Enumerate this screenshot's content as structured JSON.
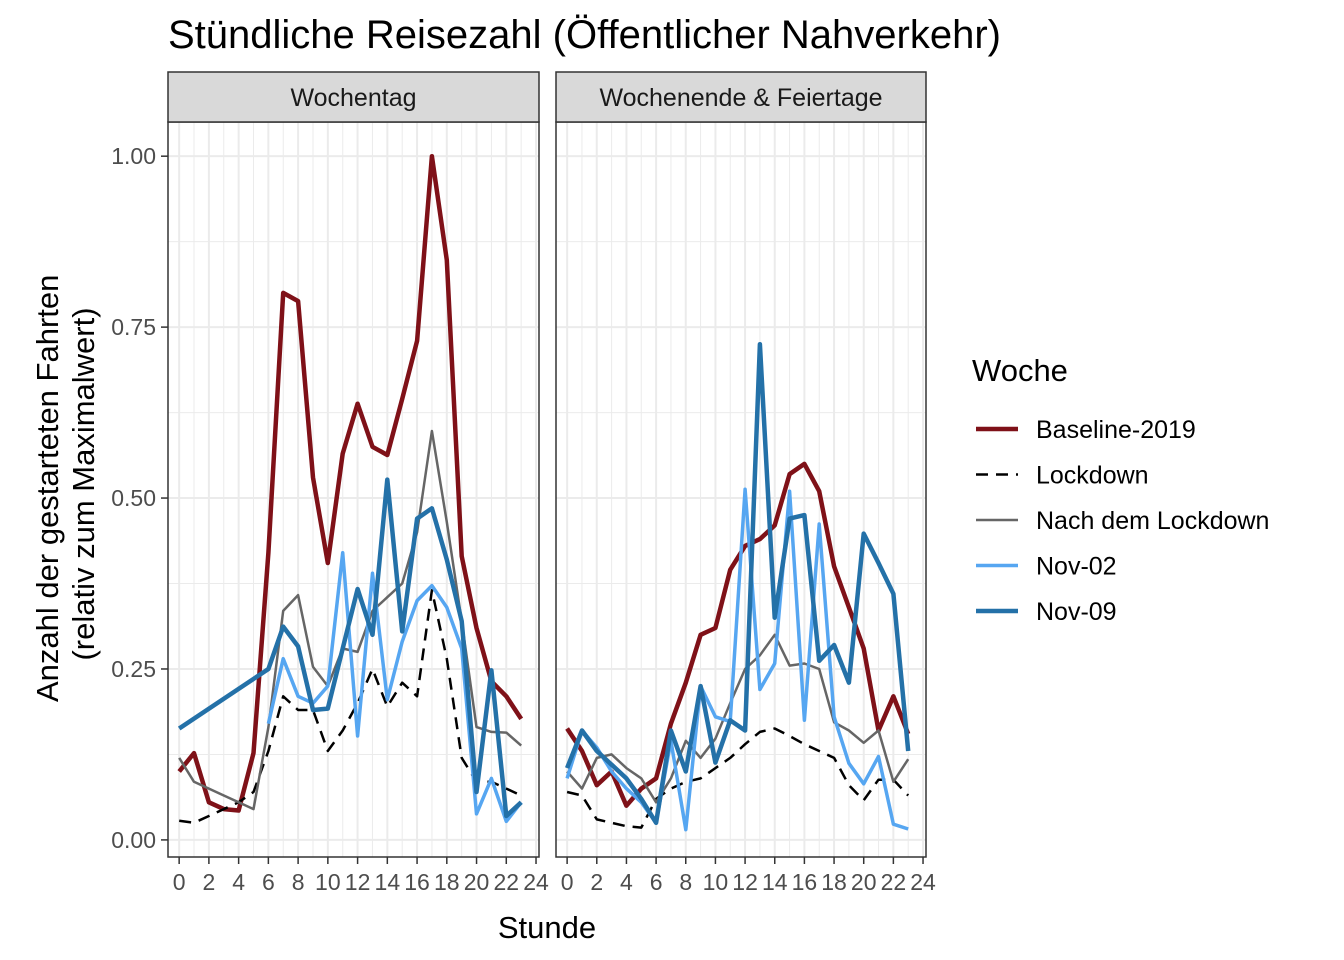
{
  "chart_data": {
    "type": "line",
    "title": "Stündliche Reisezahl (Öffentlicher Nahverkehr)",
    "xlabel": "Stunde",
    "ylabel": [
      "Anzahl der gestarteten Fahrten",
      "(relativ zum Maximalwert)"
    ],
    "xlim": [
      -0.75,
      24.2
    ],
    "ylim": [
      -0.025,
      1.05
    ],
    "x_ticks": [
      0,
      2,
      4,
      6,
      8,
      10,
      12,
      14,
      16,
      18,
      20,
      22,
      24
    ],
    "y_ticks": [
      0.0,
      0.25,
      0.5,
      0.75,
      1.0
    ],
    "y_tick_labels": [
      "0.00",
      "0.25",
      "0.50",
      "0.75",
      "1.00"
    ],
    "grid": true,
    "facets": [
      "Wochentag",
      "Wochenende & Feiertage"
    ],
    "legend": {
      "title": "Woche",
      "position": "right",
      "entries": [
        {
          "name": "Baseline-2019",
          "color": "#7f1118",
          "dash": "solid",
          "width": 4.5
        },
        {
          "name": "Lockdown",
          "color": "#000000",
          "dash": "dashed",
          "width": 2.5
        },
        {
          "name": "Nach dem Lockdown",
          "color": "#666666",
          "dash": "solid",
          "width": 2.5
        },
        {
          "name": "Nov-02",
          "color": "#56a6f1",
          "dash": "solid",
          "width": 3.5
        },
        {
          "name": "Nov-09",
          "color": "#2471a8",
          "dash": "solid",
          "width": 4.5
        }
      ]
    },
    "panels": [
      {
        "name": "Wochentag",
        "series": [
          {
            "name": "Baseline-2019",
            "x": [
              0,
              1,
              2,
              3,
              4,
              5,
              6,
              7,
              8,
              9,
              10,
              11,
              12,
              13,
              14,
              15,
              16,
              17,
              18,
              19,
              20,
              21,
              22,
              23
            ],
            "y": [
              0.1,
              0.127,
              0.055,
              0.045,
              0.043,
              0.127,
              0.42,
              0.8,
              0.788,
              0.53,
              0.405,
              0.565,
              0.638,
              0.575,
              0.563,
              0.645,
              0.73,
              1.0,
              0.848,
              0.415,
              0.31,
              0.232,
              0.21,
              0.177
            ]
          },
          {
            "name": "Lockdown",
            "x": [
              0,
              1,
              2,
              3,
              4,
              5,
              6,
              7,
              8,
              9,
              10,
              11,
              12,
              13,
              14,
              15,
              16,
              17,
              18,
              19,
              20,
              21,
              22,
              23
            ],
            "y": [
              0.028,
              0.025,
              0.035,
              0.045,
              0.055,
              0.07,
              0.13,
              0.21,
              0.19,
              0.19,
              0.13,
              0.16,
              0.2,
              0.25,
              0.195,
              0.23,
              0.21,
              0.365,
              0.265,
              0.12,
              0.085,
              0.085,
              0.075,
              0.065
            ]
          },
          {
            "name": "Nach dem Lockdown",
            "x": [
              0,
              1,
              2,
              3,
              4,
              5,
              6,
              7,
              8,
              9,
              10,
              11,
              12,
              13,
              14,
              15,
              16,
              17,
              18,
              19,
              20,
              21,
              22,
              23
            ],
            "y": [
              0.12,
              0.085,
              0.075,
              0.065,
              0.055,
              0.045,
              0.165,
              0.335,
              0.358,
              0.253,
              0.225,
              0.28,
              0.275,
              0.335,
              0.355,
              0.375,
              0.45,
              0.598,
              0.465,
              0.32,
              0.165,
              0.158,
              0.157,
              0.138
            ]
          },
          {
            "name": "Nov-02",
            "x": [
              6,
              7,
              8,
              9,
              10,
              11,
              12,
              13,
              14,
              15,
              16,
              17,
              18,
              19,
              20,
              21,
              22,
              23
            ],
            "y": [
              0.17,
              0.265,
              0.21,
              0.2,
              0.225,
              0.42,
              0.152,
              0.39,
              0.205,
              0.29,
              0.35,
              0.372,
              0.34,
              0.28,
              0.038,
              0.09,
              0.027,
              0.055
            ]
          },
          {
            "name": "Nov-09",
            "x": [
              0,
              6,
              7,
              8,
              9,
              10,
              11,
              12,
              13,
              14,
              15,
              16,
              17,
              18,
              19,
              20,
              21,
              22,
              23
            ],
            "y": [
              0.163,
              0.25,
              0.312,
              0.283,
              0.19,
              0.192,
              0.28,
              0.367,
              0.3,
              0.527,
              0.305,
              0.47,
              0.485,
              0.41,
              0.32,
              0.07,
              0.248,
              0.035,
              0.055
            ]
          }
        ]
      },
      {
        "name": "Wochenende & Feiertage",
        "series": [
          {
            "name": "Baseline-2019",
            "x": [
              0,
              1,
              2,
              3,
              4,
              5,
              6,
              7,
              8,
              9,
              10,
              11,
              12,
              13,
              14,
              15,
              16,
              17,
              18,
              19,
              20,
              21,
              22,
              23
            ],
            "y": [
              0.163,
              0.13,
              0.08,
              0.1,
              0.05,
              0.075,
              0.09,
              0.17,
              0.23,
              0.3,
              0.31,
              0.395,
              0.43,
              0.44,
              0.46,
              0.535,
              0.55,
              0.51,
              0.4,
              0.34,
              0.28,
              0.16,
              0.21,
              0.155
            ]
          },
          {
            "name": "Lockdown",
            "x": [
              0,
              1,
              2,
              3,
              4,
              5,
              6,
              7,
              8,
              9,
              10,
              11,
              12,
              13,
              14,
              15,
              16,
              17,
              18,
              19,
              20,
              21,
              22,
              23
            ],
            "y": [
              0.07,
              0.065,
              0.03,
              0.025,
              0.02,
              0.018,
              0.06,
              0.075,
              0.085,
              0.09,
              0.105,
              0.12,
              0.14,
              0.158,
              0.163,
              0.152,
              0.14,
              0.13,
              0.12,
              0.08,
              0.058,
              0.088,
              0.088,
              0.065
            ]
          },
          {
            "name": "Nach dem Lockdown",
            "x": [
              0,
              1,
              2,
              3,
              4,
              5,
              6,
              7,
              8,
              9,
              10,
              11,
              12,
              13,
              14,
              15,
              16,
              17,
              18,
              19,
              20,
              21,
              22,
              23
            ],
            "y": [
              0.1,
              0.075,
              0.12,
              0.125,
              0.105,
              0.09,
              0.055,
              0.09,
              0.145,
              0.12,
              0.148,
              0.2,
              0.25,
              0.27,
              0.3,
              0.255,
              0.258,
              0.25,
              0.172,
              0.16,
              0.142,
              0.16,
              0.085,
              0.118
            ]
          },
          {
            "name": "Nov-02",
            "x": [
              0,
              1,
              2,
              3,
              4,
              5,
              6,
              7,
              8,
              9,
              10,
              11,
              12,
              13,
              14,
              15,
              16,
              17,
              18,
              19,
              20,
              21,
              22,
              23
            ],
            "y": [
              0.09,
              0.16,
              0.135,
              0.1,
              0.075,
              0.055,
              0.025,
              0.145,
              0.015,
              0.225,
              0.18,
              0.173,
              0.513,
              0.22,
              0.258,
              0.51,
              0.175,
              0.462,
              0.18,
              0.112,
              0.082,
              0.122,
              0.023,
              0.016
            ]
          },
          {
            "name": "Nov-09",
            "x": [
              0,
              1,
              2,
              3,
              4,
              5,
              6,
              7,
              8,
              9,
              10,
              11,
              12,
              13,
              14,
              15,
              16,
              17,
              18,
              19,
              20,
              21,
              22,
              23
            ],
            "y": [
              0.105,
              0.16,
              0.13,
              0.11,
              0.09,
              0.06,
              0.025,
              0.16,
              0.1,
              0.225,
              0.113,
              0.175,
              0.16,
              0.725,
              0.325,
              0.47,
              0.475,
              0.262,
              0.285,
              0.23,
              0.448,
              0.405,
              0.36,
              0.13
            ]
          }
        ]
      }
    ]
  }
}
